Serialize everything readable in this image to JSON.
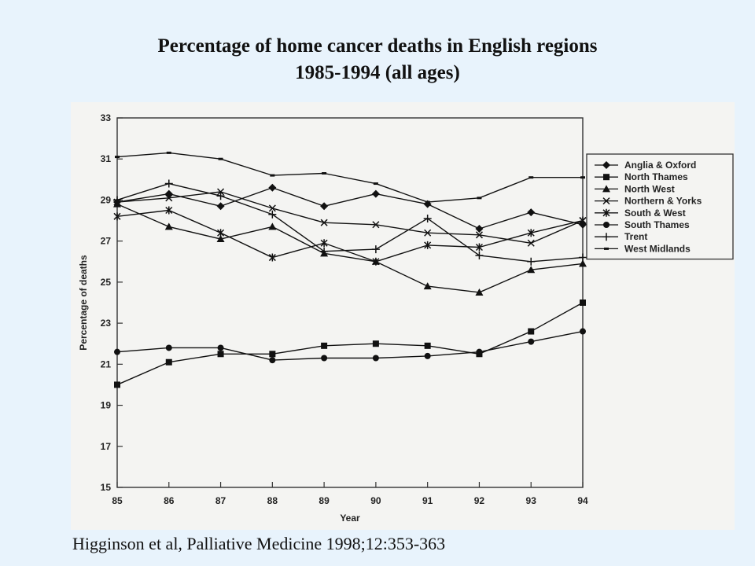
{
  "page": {
    "citation": "Higginson et al, Palliative Medicine 1998;12:353-363"
  },
  "chart_data": {
    "type": "line",
    "title": "Percentage of home cancer deaths in English regions",
    "subtitle": "1985-1994 (all ages)",
    "xlabel": "Year",
    "ylabel": "Percentage of deaths",
    "x": [
      "85",
      "86",
      "87",
      "88",
      "89",
      "90",
      "91",
      "92",
      "93",
      "94"
    ],
    "ylim": [
      15,
      33
    ],
    "yticks": [
      15,
      17,
      19,
      21,
      23,
      25,
      27,
      29,
      31,
      33
    ],
    "grid": false,
    "legend_position": "right",
    "series": [
      {
        "name": "Anglia & Oxford",
        "marker": "diamond",
        "values": [
          28.9,
          29.3,
          28.7,
          29.6,
          28.7,
          29.3,
          28.8,
          27.6,
          28.4,
          27.8
        ]
      },
      {
        "name": "North Thames",
        "marker": "square",
        "values": [
          20.0,
          21.1,
          21.5,
          21.5,
          21.9,
          22.0,
          21.9,
          21.5,
          22.6,
          24.0
        ]
      },
      {
        "name": "North West",
        "marker": "triangle",
        "values": [
          28.8,
          27.7,
          27.1,
          27.7,
          26.4,
          26.0,
          24.8,
          24.5,
          25.6,
          25.9
        ]
      },
      {
        "name": "Northern & Yorks",
        "marker": "x",
        "values": [
          28.9,
          29.1,
          29.4,
          28.6,
          27.9,
          27.8,
          27.4,
          27.3,
          26.9,
          28.0
        ]
      },
      {
        "name": "South & West",
        "marker": "asterisk",
        "values": [
          28.2,
          28.5,
          27.4,
          26.2,
          26.9,
          26.0,
          26.8,
          26.7,
          27.4,
          28.0
        ]
      },
      {
        "name": "South Thames",
        "marker": "circle",
        "values": [
          21.6,
          21.8,
          21.8,
          21.2,
          21.3,
          21.3,
          21.4,
          21.6,
          22.1,
          22.6
        ]
      },
      {
        "name": "Trent",
        "marker": "plus",
        "values": [
          29.0,
          29.8,
          29.2,
          28.3,
          26.5,
          26.6,
          28.1,
          26.3,
          26.0,
          26.2
        ]
      },
      {
        "name": "West Midlands",
        "marker": "dash",
        "values": [
          31.1,
          31.3,
          31.0,
          30.2,
          30.3,
          29.8,
          28.9,
          29.1,
          30.1,
          30.1
        ]
      }
    ]
  }
}
